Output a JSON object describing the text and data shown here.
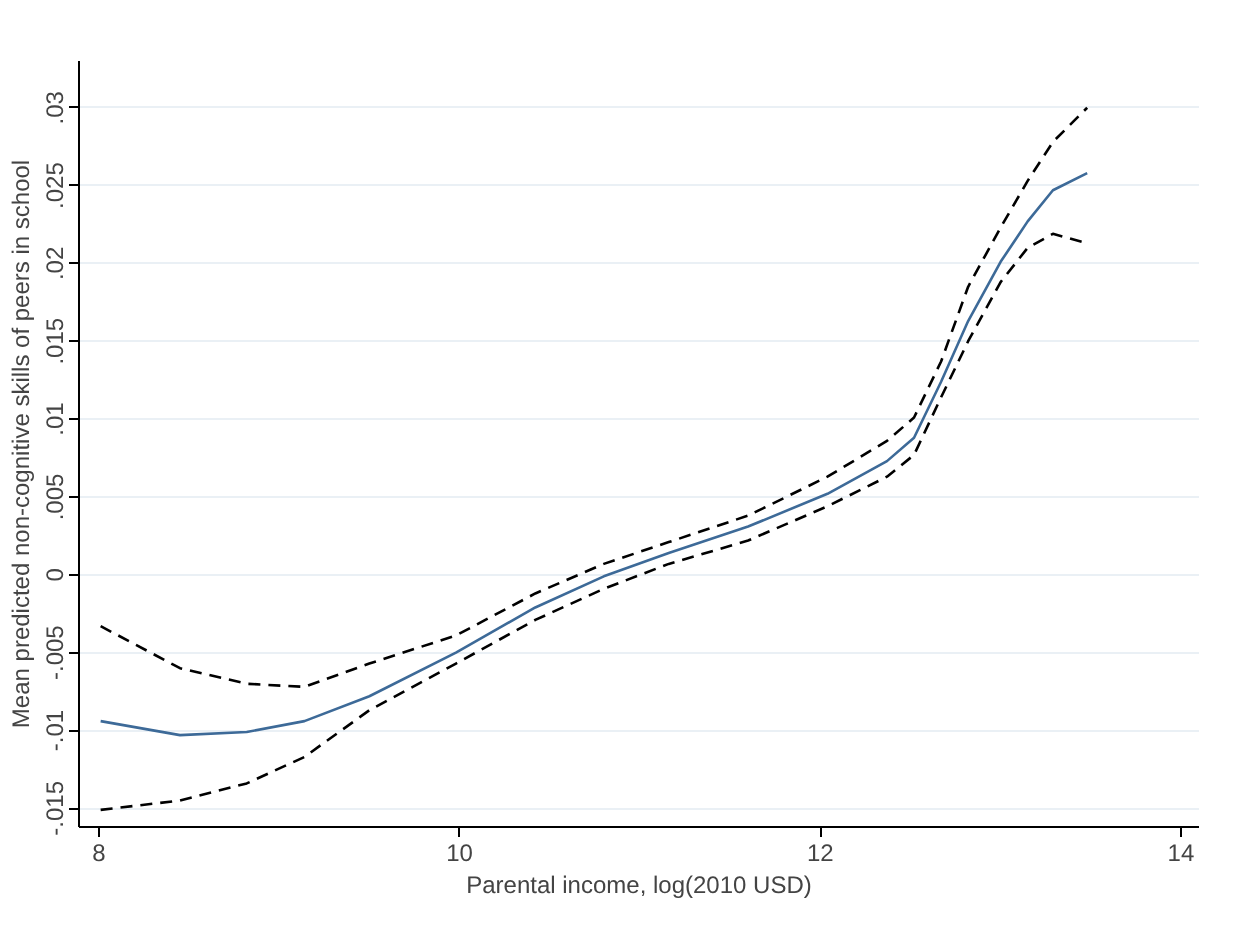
{
  "chart_data": {
    "type": "line",
    "xlabel": "Parental income, log(2010 USD)",
    "ylabel": "Mean predicted non-cognitive skills of peers in school",
    "xlim": [
      7.89,
      14.1
    ],
    "ylim": [
      -0.0162,
      0.033
    ],
    "xticks": [
      8,
      10,
      12,
      14
    ],
    "yticks": [
      {
        "value": -0.015,
        "label": "-.015"
      },
      {
        "value": -0.01,
        "label": "-.01"
      },
      {
        "value": -0.005,
        "label": "-.005"
      },
      {
        "value": 0,
        "label": "0"
      },
      {
        "value": 0.005,
        "label": ".005"
      },
      {
        "value": 0.01,
        "label": ".01"
      },
      {
        "value": 0.015,
        "label": ".015"
      },
      {
        "value": 0.02,
        "label": ".02"
      },
      {
        "value": 0.025,
        "label": ".025"
      },
      {
        "value": 0.03,
        "label": ".03"
      }
    ],
    "grid": "y",
    "series": [
      {
        "color": "#3d6a98",
        "line_style": "solid",
        "x": [
          8.01,
          8.45,
          8.82,
          9.14,
          9.5,
          9.98,
          10.42,
          10.8,
          11.16,
          11.6,
          12.04,
          12.37,
          12.52,
          12.67,
          12.82,
          13.0,
          13.15,
          13.29,
          13.48
        ],
        "values": [
          -0.0094,
          -0.0103,
          -0.0101,
          -0.0094,
          -0.0078,
          -0.005,
          -0.0021,
          -0.0001,
          0.0014,
          0.0031,
          0.0052,
          0.0073,
          0.0088,
          0.0124,
          0.0163,
          0.0201,
          0.0227,
          0.0247,
          0.0258
        ]
      },
      {
        "color": "#000000",
        "line_style": "dashed",
        "x": [
          8.01,
          8.45,
          8.82,
          9.14,
          9.5,
          9.98,
          10.42,
          10.8,
          11.16,
          11.6,
          12.04,
          12.37,
          12.52,
          12.67,
          12.82,
          13.0,
          13.15,
          13.29,
          13.48
        ],
        "values": [
          -0.0033,
          -0.006,
          -0.007,
          -0.0072,
          -0.0057,
          -0.0039,
          -0.0012,
          0.0007,
          0.0021,
          0.0038,
          0.0063,
          0.0086,
          0.0101,
          0.0137,
          0.0185,
          0.0223,
          0.0253,
          0.0278,
          0.03
        ]
      },
      {
        "color": "#000000",
        "line_style": "dashed",
        "x": [
          8.01,
          8.45,
          8.82,
          9.14,
          9.5,
          9.98,
          10.42,
          10.8,
          11.16,
          11.6,
          12.04,
          12.37,
          12.52,
          12.67,
          12.82,
          13.0,
          13.15,
          13.29,
          13.48
        ],
        "values": [
          -0.0151,
          -0.0145,
          -0.0134,
          -0.0117,
          -0.0087,
          -0.0057,
          -0.0029,
          -0.0009,
          0.0007,
          0.0022,
          0.0044,
          0.0063,
          0.0077,
          0.0114,
          0.015,
          0.0188,
          0.021,
          0.0219,
          0.0213
        ]
      }
    ]
  }
}
